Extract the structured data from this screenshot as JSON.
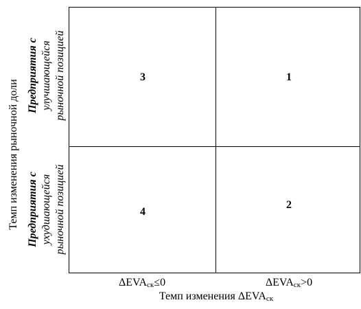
{
  "y_axis": {
    "title": "Темп изменения рыночной доли",
    "top_label": [
      "Предприятия с",
      "улучшающейся",
      "рыночной позицией"
    ],
    "bottom_label": [
      "Предприятия с",
      "ухудшающейся",
      "рыночной позицией"
    ]
  },
  "cells": {
    "top_left": "3",
    "top_right": "1",
    "bottom_left": "4",
    "bottom_right": "2"
  },
  "x_axis": {
    "left_tick": {
      "prefix": "ΔEVA",
      "sub": "ск",
      "suffix": "≤0"
    },
    "right_tick": {
      "prefix": "ΔEVA",
      "sub": "ск",
      "suffix": ">0"
    },
    "title": {
      "prefix": "Темп изменения ΔEVA",
      "sub": "ск"
    }
  }
}
